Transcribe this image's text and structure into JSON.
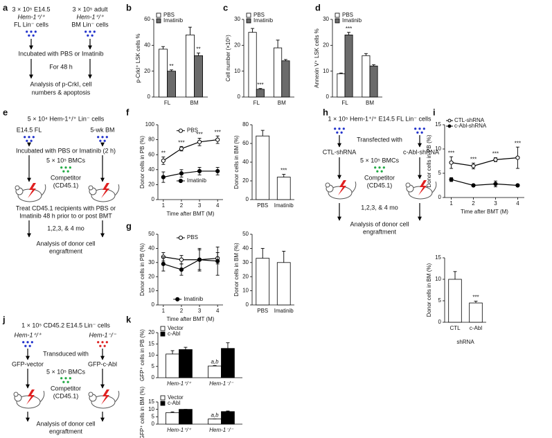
{
  "diagrams": {
    "a": {
      "label": "a",
      "texts": [
        "3 × 10⁵ E14.5",
        "Hem-1⁺/⁺",
        "FL Lin⁻ cells",
        "3 × 10⁵ adult",
        "Hem-1⁺/⁺",
        "BM Lin⁻ cells",
        "Incubated with PBS or Imatinib",
        "For 48 h",
        "Analysis of p-CrkI, cell",
        "numbers & apoptosis"
      ]
    },
    "e": {
      "label": "e",
      "texts": [
        "5 × 10⁴ Hem-1⁺/⁺ Lin⁻ cells",
        "E14.5 FL",
        "5-wk BM",
        "Incubated with PBS or Imatinib (2 h)",
        "5 × 10⁵ BMCs",
        "Competitor",
        "(CD45.1)",
        "Treat CD45.1 recipients with PBS or",
        "Imatinib 48 h prior to or post BMT",
        "1,2,3, & 4 mo",
        "Analysis of donor cell",
        "engraftment"
      ]
    },
    "h": {
      "label": "h",
      "texts": [
        "1 × 10⁵ Hem-1⁺/⁺ E14.5 FL Lin⁻ cells",
        "Transfected with",
        "CTL-shRNA",
        "c-Abl-shRNA",
        "5 × 10⁵ BMCs",
        "Competitor",
        "(CD45.1)",
        "1,2,3, & 4 mo",
        "Analysis of donor cell",
        "engraftment"
      ]
    },
    "j": {
      "label": "j",
      "texts": [
        "1 × 10⁵ CD45.2 E14.5 Lin⁻ cells",
        "Hem-1⁺/⁺",
        "Hem-1⁻/⁻",
        "Transduced with",
        "GFP-vector",
        "GFP-c-Abl",
        "5 × 10⁵ BMCs",
        "Competitor",
        "(CD45.1)",
        "Analysis of donor cell",
        "engraftment"
      ]
    }
  },
  "chart_data": [
    {
      "type": "bar",
      "panel": "b",
      "ylabel": "p-CrkI⁺ LSK cells %",
      "categories": [
        "FL",
        "BM"
      ],
      "ylim": [
        0,
        60
      ],
      "yticks": [
        0,
        20,
        40,
        60
      ],
      "legend": "top-left",
      "series": [
        {
          "name": "PBS",
          "color": "#ffffff",
          "values": [
            37,
            48
          ],
          "errors": [
            2,
            6
          ]
        },
        {
          "name": "Imatinib",
          "color": "#6b6b6b",
          "values": [
            20,
            32
          ],
          "errors": [
            1,
            2
          ],
          "annotations": [
            "**",
            "**"
          ]
        }
      ]
    },
    {
      "type": "bar",
      "panel": "c",
      "ylabel": "Cell number (×10⁵)",
      "categories": [
        "FL",
        "BM"
      ],
      "ylim": [
        0,
        30
      ],
      "yticks": [
        0,
        10,
        20,
        30
      ],
      "legend": "top-left",
      "series": [
        {
          "name": "PBS",
          "color": "#ffffff",
          "values": [
            25,
            19
          ],
          "errors": [
            1.5,
            3
          ]
        },
        {
          "name": "Imatinib",
          "color": "#6b6b6b",
          "values": [
            3,
            14
          ],
          "errors": [
            0.3,
            0.5
          ],
          "annotations": [
            "***",
            null
          ]
        }
      ]
    },
    {
      "type": "bar",
      "panel": "d",
      "ylabel": "Annexin V⁺ LSK cells %",
      "categories": [
        "FL",
        "BM"
      ],
      "ylim": [
        0,
        30
      ],
      "yticks": [
        0,
        10,
        20,
        30
      ],
      "legend": "top-left",
      "series": [
        {
          "name": "PBS",
          "color": "#ffffff",
          "values": [
            9,
            16
          ],
          "errors": [
            0.3,
            0.8
          ]
        },
        {
          "name": "Imatinib",
          "color": "#6b6b6b",
          "values": [
            24,
            12
          ],
          "errors": [
            1,
            0.5
          ],
          "annotations": [
            "***",
            null
          ]
        }
      ]
    },
    {
      "type": "line",
      "panel": "f",
      "ylabel": "Donor cells in PB (%)",
      "xlabel": "Time after BMT (M)",
      "x": [
        1,
        2,
        3,
        4
      ],
      "xlim": [
        0.7,
        4.3
      ],
      "xticks": [
        1,
        2,
        3,
        4
      ],
      "ylim": [
        0,
        100
      ],
      "yticks": [
        0,
        20,
        40,
        60,
        80,
        100
      ],
      "legend": "inline",
      "series": [
        {
          "name": "PBS",
          "color": "#000000",
          "marker": "open",
          "values": [
            52,
            68,
            77,
            80
          ],
          "errors": [
            5,
            3,
            5,
            5
          ],
          "annotations": [
            "**",
            "***",
            "***",
            "***"
          ]
        },
        {
          "name": "Imatinib",
          "color": "#000000",
          "marker": "filled",
          "values": [
            30,
            35,
            38,
            38
          ],
          "errors": [
            7,
            5,
            5,
            5
          ]
        }
      ]
    },
    {
      "type": "bar",
      "ylabel": "Donor cells in BM (%)",
      "categories": [
        "PBS",
        "Imatinib"
      ],
      "ylim": [
        0,
        80
      ],
      "yticks": [
        0,
        20,
        40,
        60,
        80
      ],
      "color": "#ffffff",
      "values": [
        68,
        24
      ],
      "errors": [
        6,
        3
      ],
      "annotations": [
        null,
        "***"
      ]
    },
    {
      "type": "line",
      "panel": "g",
      "ylabel": "Donor cells in PB (%)",
      "xlabel": "Time after BMT (M)",
      "x": [
        1,
        2,
        3,
        4
      ],
      "xlim": [
        0.7,
        4.3
      ],
      "xticks": [
        1,
        2,
        3,
        4
      ],
      "ylim": [
        0,
        50
      ],
      "yticks": [
        0,
        10,
        20,
        30,
        40,
        50
      ],
      "legend": "inline",
      "series": [
        {
          "name": "PBS",
          "color": "#000000",
          "marker": "open",
          "values": [
            34,
            32,
            32,
            33
          ],
          "errors": [
            3,
            3,
            7,
            4
          ]
        },
        {
          "name": "Imatinib",
          "color": "#000000",
          "marker": "filled",
          "values": [
            29,
            25,
            32,
            31
          ],
          "errors": [
            5,
            4,
            8,
            10
          ]
        }
      ]
    },
    {
      "type": "bar",
      "ylabel": "Donor cells in BM (%)",
      "categories": [
        "PBS",
        "Imatinib"
      ],
      "ylim": [
        0,
        50
      ],
      "yticks": [
        0,
        10,
        20,
        30,
        40,
        50
      ],
      "color": "#ffffff",
      "values": [
        33,
        30
      ],
      "errors": [
        7,
        8
      ]
    },
    {
      "type": "line",
      "panel": "i",
      "ylabel": "Donor cells in PB (%)",
      "xlabel": "Time after BMT (M)",
      "x": [
        1,
        2,
        3,
        4
      ],
      "xlim": [
        0.7,
        4.3
      ],
      "xticks": [
        1,
        2,
        3,
        4
      ],
      "ylim": [
        0,
        15
      ],
      "yticks": [
        0,
        5,
        10,
        15
      ],
      "legend": "top-left",
      "series": [
        {
          "name": "CTL-shRNA",
          "color": "#000000",
          "marker": "open",
          "values": [
            7.2,
            6.5,
            7.8,
            8.2
          ],
          "errors": [
            1.2,
            0.6,
            0.4,
            2.2
          ],
          "annotations": [
            "***",
            "***",
            "***",
            "***"
          ]
        },
        {
          "name": "c-Abl-shRNA",
          "color": "#000000",
          "marker": "filled",
          "values": [
            3.7,
            2.5,
            2.8,
            2.5
          ],
          "errors": [
            0.4,
            0.2,
            0.6,
            0.2
          ]
        }
      ]
    },
    {
      "type": "bar",
      "ylabel": "Donor cells in BM (%)",
      "xlabel": "shRNA",
      "categories": [
        "CTL",
        "c-Abl"
      ],
      "ylim": [
        0,
        15
      ],
      "yticks": [
        0,
        5,
        10,
        15
      ],
      "color": "#ffffff",
      "values": [
        10,
        4.5
      ],
      "errors": [
        1.8,
        0.4
      ],
      "annotations": [
        null,
        "***"
      ]
    },
    {
      "type": "bar",
      "panel": "k",
      "ylabel": "GFP⁺ cells in PB (%)",
      "categories": [
        "Hem-1⁺/⁺",
        "Hem-1⁻/⁻"
      ],
      "ylim": [
        0,
        20
      ],
      "yticks": [
        0,
        5,
        10,
        15,
        20
      ],
      "legend": "top-left",
      "series": [
        {
          "name": "Vector",
          "color": "#ffffff",
          "values": [
            10.5,
            5.2
          ],
          "errors": [
            1.5,
            0.2
          ],
          "annotations": [
            null,
            "a,b"
          ]
        },
        {
          "name": "c-Abl",
          "color": "#000000",
          "values": [
            12.5,
            13
          ],
          "errors": [
            1,
            2.5
          ]
        }
      ]
    },
    {
      "type": "bar",
      "ylabel": "GFP⁺ cells in BM (%)",
      "categories": [
        "Hem-1⁺/⁺",
        "Hem-1⁻/⁻"
      ],
      "ylim": [
        0,
        15
      ],
      "yticks": [
        0,
        5,
        10,
        15
      ],
      "legend": "top-left",
      "series": [
        {
          "name": "Vector",
          "color": "#ffffff",
          "values": [
            7.8,
            3.5
          ],
          "errors": [
            0.5,
            0
          ],
          "annotations": [
            null,
            "a,b"
          ]
        },
        {
          "name": "c-Abl",
          "color": "#000000",
          "values": [
            10,
            8.5
          ],
          "errors": [
            0,
            0.4
          ]
        }
      ]
    }
  ]
}
